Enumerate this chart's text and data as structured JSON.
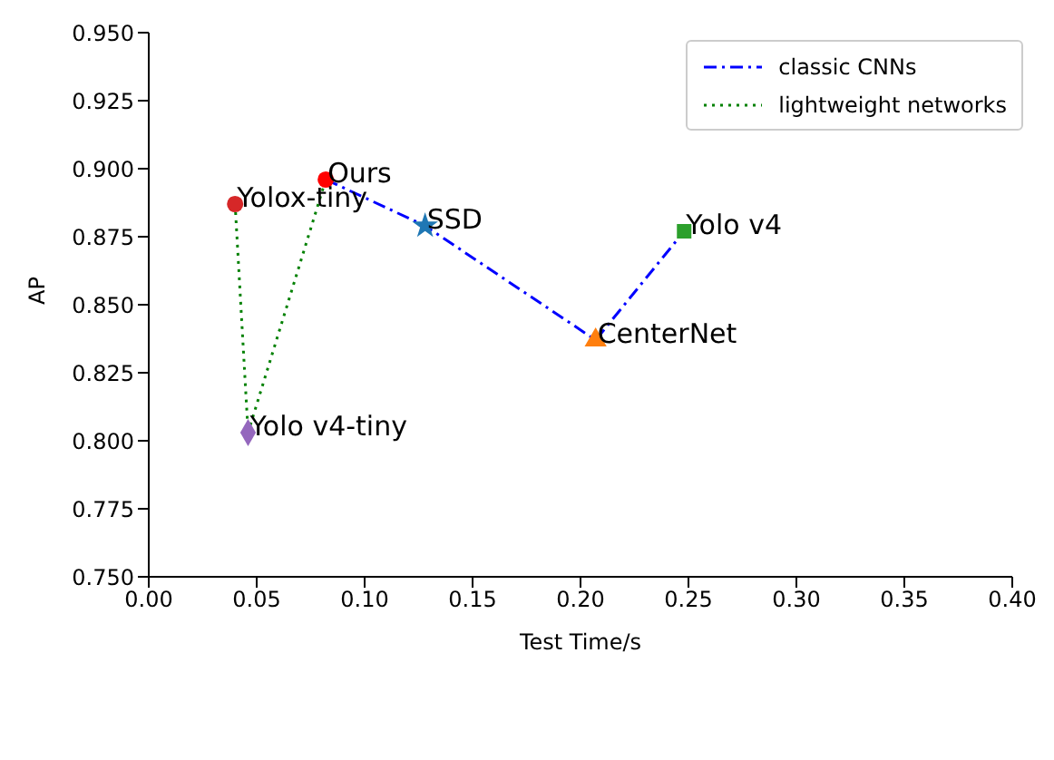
{
  "chart_data": {
    "type": "line",
    "xlabel": "Test Time/s",
    "ylabel": "AP",
    "xlim": [
      0,
      0.4
    ],
    "xticks": [
      {
        "value": 0,
        "label": "0.00"
      },
      {
        "value": 0.05,
        "label": "0.05"
      },
      {
        "value": 0.1,
        "label": "0.10"
      },
      {
        "value": 0.15,
        "label": "0.15"
      },
      {
        "value": 0.2,
        "label": "0.20"
      },
      {
        "value": 0.25,
        "label": "0.25"
      },
      {
        "value": 0.3,
        "label": "0.30"
      },
      {
        "value": 0.35,
        "label": "0.35"
      },
      {
        "value": 0.4,
        "label": "0.40"
      }
    ],
    "ylim": [
      0.75,
      0.95
    ],
    "yticks": [
      {
        "value": 0.75,
        "label": "0.750"
      },
      {
        "value": 0.775,
        "label": "0.775"
      },
      {
        "value": 0.8,
        "label": "0.800"
      },
      {
        "value": 0.825,
        "label": "0.825"
      },
      {
        "value": 0.85,
        "label": "0.850"
      },
      {
        "value": 0.875,
        "label": "0.875"
      },
      {
        "value": 0.9,
        "label": "0.900"
      },
      {
        "value": 0.925,
        "label": "0.925"
      },
      {
        "value": 0.95,
        "label": "0.950"
      }
    ],
    "legend": "top right",
    "grid": false,
    "series": [
      {
        "name": "classic CNNs",
        "color": "#0000ff",
        "line_style": "dashdot",
        "marker": "none",
        "x": [
          0.082,
          0.128,
          0.207,
          0.248
        ],
        "values": [
          0.896,
          0.879,
          0.837,
          0.877
        ]
      },
      {
        "name": "lightweight networks",
        "color": "#008000",
        "line_style": "dotted",
        "marker": "none",
        "x": [
          0.04,
          0.046,
          0.082
        ],
        "values": [
          0.887,
          0.803,
          0.896
        ]
      },
      {
        "type": "scatter",
        "color": "#ff0000",
        "marker": "circle",
        "x": [
          0.082
        ],
        "values": [
          0.896
        ]
      },
      {
        "type": "scatter",
        "color": "#d62728",
        "marker": "circle",
        "x": [
          0.04
        ],
        "values": [
          0.887
        ]
      },
      {
        "type": "scatter",
        "color": "#1f77b4",
        "marker": "star",
        "x": [
          0.128
        ],
        "values": [
          0.879
        ]
      },
      {
        "type": "scatter",
        "color": "#ff7f0e",
        "marker": "triangle",
        "x": [
          0.207
        ],
        "values": [
          0.837
        ]
      },
      {
        "type": "scatter",
        "color": "#2ca02c",
        "marker": "square",
        "x": [
          0.248
        ],
        "values": [
          0.877
        ]
      },
      {
        "type": "scatter",
        "color": "#9467bd",
        "marker": "diamond",
        "x": [
          0.046
        ],
        "values": [
          0.803
        ]
      }
    ],
    "annotations": [
      {
        "text": "Ours",
        "x": 0.082,
        "y": 0.896
      },
      {
        "text": "Yolox-tiny",
        "x": 0.04,
        "y": 0.887
      },
      {
        "text": "SSD",
        "x": 0.128,
        "y": 0.879
      },
      {
        "text": "CenterNet",
        "x": 0.207,
        "y": 0.837
      },
      {
        "text": "Yolo v4",
        "x": 0.248,
        "y": 0.877
      },
      {
        "text": "Yolo v4-tiny",
        "x": 0.046,
        "y": 0.803
      }
    ]
  }
}
